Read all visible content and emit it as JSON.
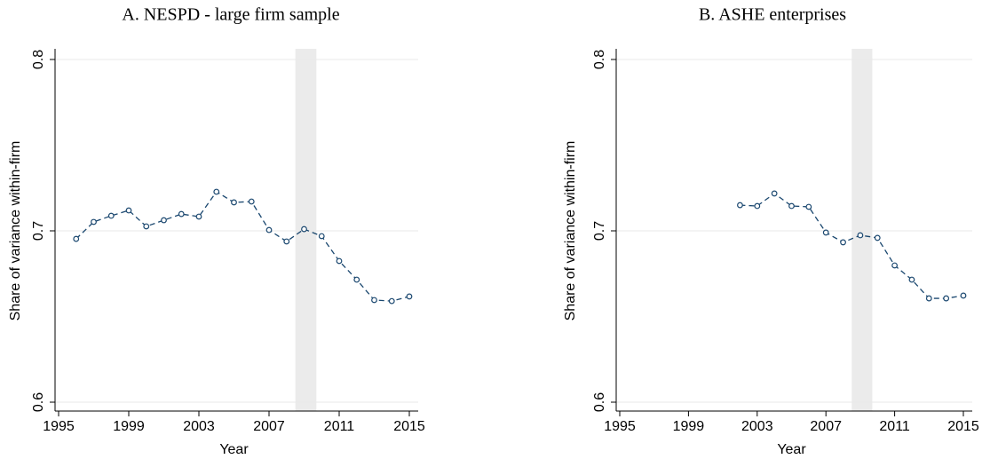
{
  "chart_data": [
    {
      "type": "line",
      "title": "A. NESPD - large firm sample",
      "xlabel": "Year",
      "ylabel": "Share of variance within-firm",
      "x": [
        1996,
        1997,
        1998,
        1999,
        2000,
        2001,
        2002,
        2003,
        2004,
        2005,
        2006,
        2007,
        2008,
        2009,
        2010,
        2011,
        2012,
        2013,
        2014,
        2015
      ],
      "series": [
        {
          "color": "#1a476f",
          "values": [
            0.6953,
            0.7052,
            0.7088,
            0.7119,
            0.7026,
            0.7062,
            0.7098,
            0.7083,
            0.7228,
            0.7166,
            0.7171,
            0.7005,
            0.6938,
            0.701,
            0.6969,
            0.6824,
            0.6715,
            0.6596,
            0.659,
            0.6617
          ]
        }
      ],
      "xlim": [
        1995,
        2015
      ],
      "xticks": [
        1995,
        1999,
        2003,
        2007,
        2011,
        2015
      ],
      "ylim": [
        0.6,
        0.8
      ],
      "yticks": [
        0.6,
        0.7,
        0.8
      ],
      "grid": true,
      "shaded_span": [
        2008.5,
        2009.7
      ],
      "shade_color": "#ebebeb"
    },
    {
      "type": "line",
      "title": "B. ASHE enterprises",
      "xlabel": "Year",
      "ylabel": "Share of variance within-firm",
      "x": [
        2002,
        2003,
        2004,
        2005,
        2006,
        2007,
        2008,
        2009,
        2010,
        2011,
        2012,
        2013,
        2014,
        2015
      ],
      "series": [
        {
          "color": "#1a476f",
          "values": [
            0.715,
            0.7145,
            0.7218,
            0.7145,
            0.714,
            0.699,
            0.6933,
            0.6974,
            0.6959,
            0.6798,
            0.6715,
            0.6606,
            0.6606,
            0.6622
          ]
        }
      ],
      "xlim": [
        1995,
        2015
      ],
      "xticks": [
        1995,
        1999,
        2003,
        2007,
        2011,
        2015
      ],
      "ylim": [
        0.6,
        0.8
      ],
      "yticks": [
        0.6,
        0.7,
        0.8
      ],
      "grid": true,
      "shaded_span": [
        2008.5,
        2009.7
      ],
      "shade_color": "#ebebeb"
    }
  ]
}
